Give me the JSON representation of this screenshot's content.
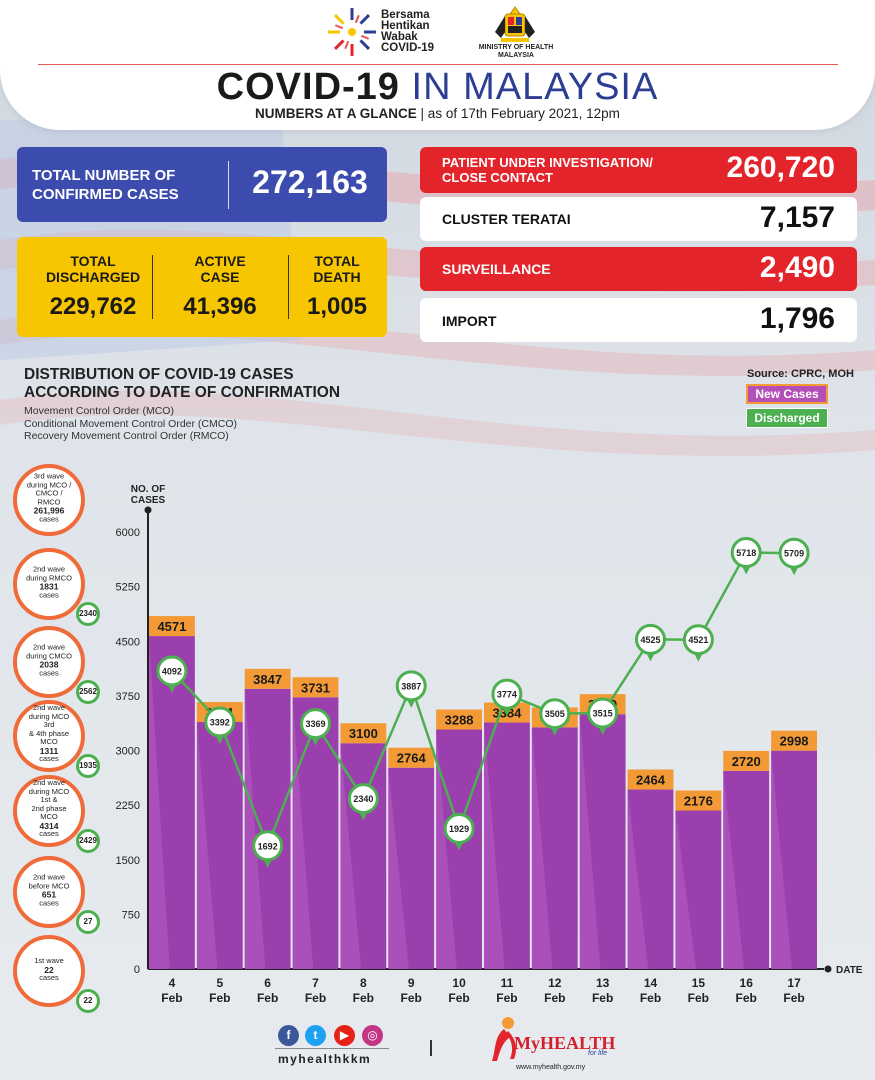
{
  "header": {
    "campaign_line1": "Bersama",
    "campaign_line2": "Hentikan",
    "campaign_line3": "Wabak",
    "campaign_line4": "COVID-19",
    "ministry_line1": "MINISTRY OF HEALTH",
    "ministry_line2": "MALAYSIA",
    "title_main": "COVID-19",
    "title_accent": " IN MALAYSIA",
    "subtitle_strong": "NUMBERS AT A GLANCE",
    "subtitle_rest": " | as of 17th February 2021, 12pm"
  },
  "stats": {
    "confirmed_label_1": "TOTAL NUMBER OF",
    "confirmed_label_2": "CONFIRMED CASES",
    "confirmed_value": "272,163",
    "discharged_label_1": "TOTAL",
    "discharged_label_2": "DISCHARGED",
    "discharged_value": "229,762",
    "active_label_1": "ACTIVE",
    "active_label_2": "CASE",
    "active_value": "41,396",
    "death_label_1": "TOTAL",
    "death_label_2": "DEATH",
    "death_value": "1,005",
    "pui_label_1": "PATIENT UNDER INVESTIGATION/",
    "pui_label_2": "CLOSE CONTACT",
    "pui_value": "260,720",
    "teratai_label": "CLUSTER TERATAI",
    "teratai_value": "7,157",
    "surveillance_label": "SURVEILLANCE",
    "surveillance_value": "2,490",
    "import_label": "IMPORT",
    "import_value": "1,796"
  },
  "chart_heading": {
    "line1": "DISTRIBUTION OF COVID-19 CASES",
    "line2": "ACCORDING TO DATE OF CONFIRMATION",
    "note1": "Movement Control Order (MCO)",
    "note2": "Conditional Movement Control Order (CMCO)",
    "note3": "Recovery Movement Control Order (RMCO)",
    "source": "Source: CPRC, MOH",
    "legend_new": "New Cases",
    "legend_discharged": "Discharged"
  },
  "waves": [
    {
      "l1": "3rd wave",
      "l2": "during MCO /",
      "l3": "CMCO / RMCO",
      "count": "261,996",
      "l5": "cases",
      "discharged": ""
    },
    {
      "l1": "2nd wave",
      "l2": "during RMCO",
      "l3": "",
      "count": "1831",
      "l5": "cases",
      "discharged": "2340"
    },
    {
      "l1": "2nd wave",
      "l2": "during CMCO",
      "l3": "",
      "count": "2038",
      "l5": "cases",
      "discharged": "2562"
    },
    {
      "l1": "2nd wave",
      "l2": "during MCO 3rd",
      "l3": "& 4th phase MCO",
      "count": "1311",
      "l5": "cases",
      "discharged": "1935"
    },
    {
      "l1": "2nd wave",
      "l2": "during MCO 1st &",
      "l3": "2nd phase MCO",
      "count": "4314",
      "l5": "cases",
      "discharged": "2429"
    },
    {
      "l1": "2nd wave",
      "l2": "before MCO",
      "l3": "",
      "count": "651",
      "l5": "cases",
      "discharged": "27"
    },
    {
      "l1": "1st wave",
      "l2": "",
      "l3": "",
      "count": "22",
      "l5": "cases",
      "discharged": "22"
    }
  ],
  "chart_data": {
    "type": "bar",
    "title": "DISTRIBUTION OF COVID-19 CASES ACCORDING TO DATE OF CONFIRMATION",
    "ylabel_line1": "NO. OF",
    "ylabel_line2": "CASES",
    "xlabel": "DATE",
    "ylim": [
      0,
      6000
    ],
    "yticks": [
      0,
      750,
      1500,
      2250,
      3000,
      3750,
      4500,
      5250,
      6000
    ],
    "categories": [
      "4",
      "5",
      "6",
      "7",
      "8",
      "9",
      "10",
      "11",
      "12",
      "13",
      "14",
      "15",
      "16",
      "17"
    ],
    "category_sub": "Feb",
    "series": [
      {
        "name": "New Cases",
        "type": "bar",
        "values": [
          4571,
          3391,
          3847,
          3731,
          3100,
          2764,
          3288,
          3384,
          3318,
          3499,
          2464,
          2176,
          2720,
          2998
        ]
      },
      {
        "name": "Discharged",
        "type": "line",
        "values": [
          4092,
          3392,
          1692,
          3369,
          2340,
          3887,
          1929,
          3774,
          3505,
          3515,
          4525,
          4521,
          5718,
          5709
        ]
      }
    ],
    "colors": {
      "bar": "#9c3fae",
      "bar_light": "#b85cc4",
      "bar_label_bg": "#f39a36",
      "line": "#4caf50"
    }
  },
  "footer": {
    "handle": "myhealthkkm",
    "brand": "MyHEALTH",
    "tagline": "for life",
    "url": "www.myhealth.gov.my"
  }
}
